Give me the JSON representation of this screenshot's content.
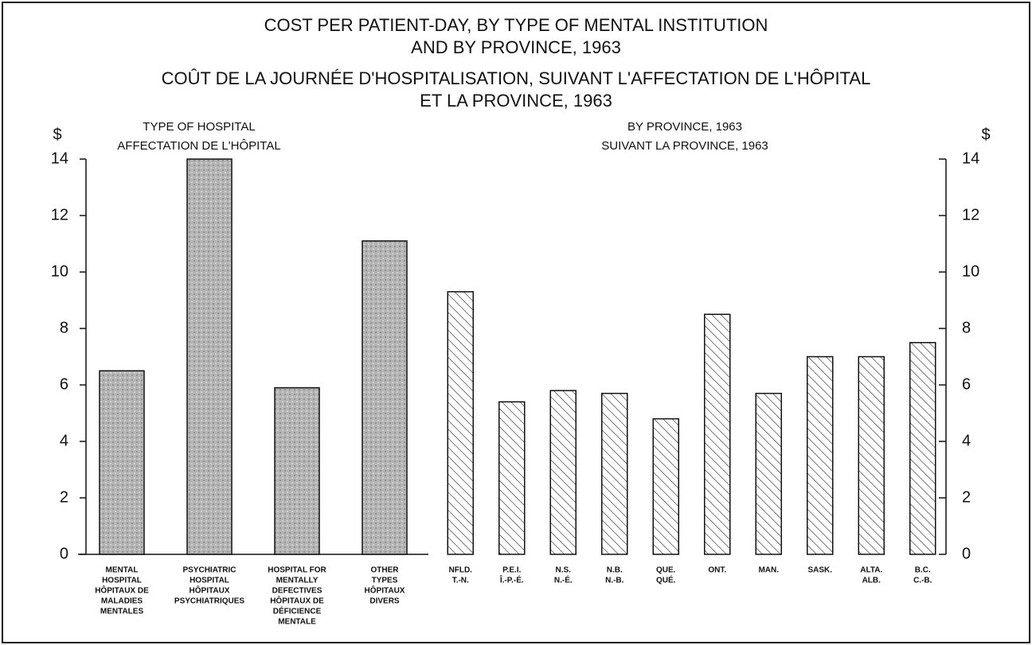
{
  "title": [
    "COST PER PATIENT-DAY, BY TYPE OF MENTAL INSTITUTION",
    "AND BY PROVINCE, 1963",
    "COÛT DE LA JOURNÉE D'HOSPITALISATION, SUIVANT L'AFFECTATION DE L'HÔPITAL",
    "ET LA PROVINCE, 1963"
  ],
  "chart_data": [
    {
      "type": "bar",
      "subtitle": [
        "TYPE OF HOSPITAL",
        "AFFECTATION DE L'HÔPITAL"
      ],
      "y_label": "$",
      "categories": [
        [
          "MENTAL",
          "HOSPITAL",
          "HÔPITAUX DE",
          "MALADIES",
          "MENTALES"
        ],
        [
          "PSYCHIATRIC",
          "HOSPITAL",
          "HÔPITAUX",
          "PSYCHIATRIQUES"
        ],
        [
          "HOSPITAL FOR",
          "MENTALLY",
          "DEFECTIVES",
          "HÔPITAUX DE",
          "DÉFICIENCE",
          "MENTALE"
        ],
        [
          "OTHER",
          "TYPES",
          "HÔPITAUX",
          "DIVERS"
        ]
      ],
      "values": [
        6.5,
        14.0,
        5.9,
        11.1
      ],
      "color": "#b4b4b4",
      "pattern": "stipple",
      "ylim": [
        0,
        14
      ],
      "yticks": [
        0,
        2,
        4,
        6,
        8,
        10,
        12,
        14
      ],
      "axis_side": "left"
    },
    {
      "type": "bar",
      "subtitle": [
        "BY PROVINCE, 1963",
        "SUIVANT LA PROVINCE, 1963"
      ],
      "y_label": "$",
      "categories": [
        [
          "NFLD.",
          "T.-N."
        ],
        [
          "P.E.I.",
          "Î.-P.-É."
        ],
        [
          "N.S.",
          "N.-É."
        ],
        [
          "N.B.",
          "N.-B."
        ],
        [
          "QUE.",
          "QUÉ."
        ],
        [
          "ONT."
        ],
        [
          "MAN."
        ],
        [
          "SASK."
        ],
        [
          "ALTA.",
          "ALB."
        ],
        [
          "B.C.",
          "C.-B."
        ]
      ],
      "values": [
        9.3,
        5.4,
        5.8,
        5.7,
        4.8,
        8.5,
        5.7,
        7.0,
        7.0,
        7.5
      ],
      "color": "#222222",
      "pattern": "hatch",
      "ylim": [
        0,
        14
      ],
      "yticks": [
        0,
        2,
        4,
        6,
        8,
        10,
        12,
        14
      ],
      "axis_side": "right"
    }
  ]
}
